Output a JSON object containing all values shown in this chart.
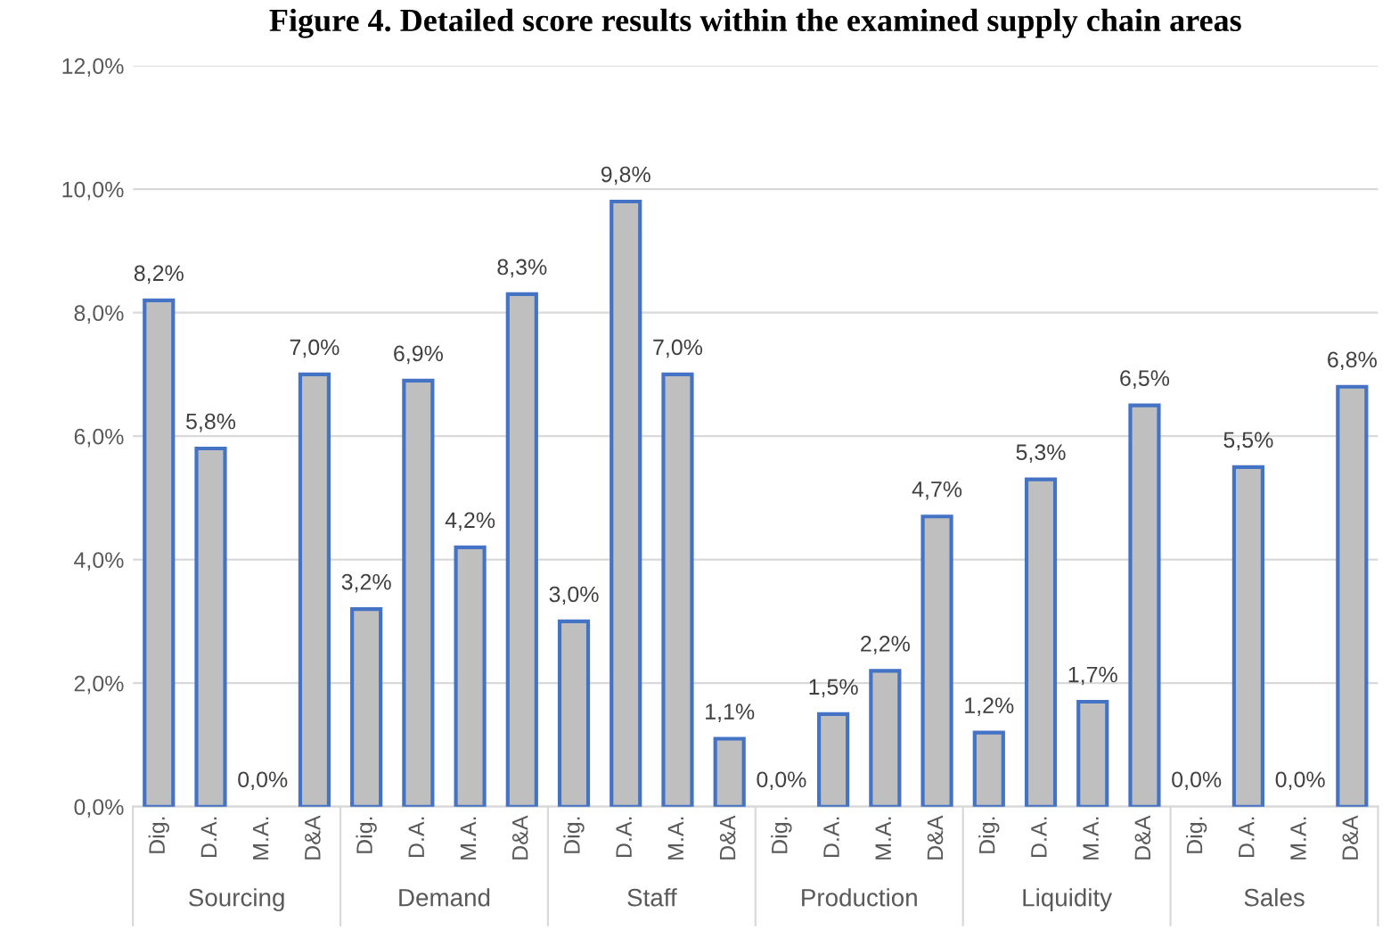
{
  "chart_data": {
    "type": "bar",
    "title": "Figure 4. Detailed score results within the examined supply chain areas",
    "categories": [
      "Dig.",
      "D.A.",
      "M.A.",
      "D&A",
      "Dig.",
      "D.A.",
      "M.A.",
      "D&A",
      "Dig.",
      "D.A.",
      "M.A.",
      "D&A",
      "Dig.",
      "D.A.",
      "M.A.",
      "D&A",
      "Dig.",
      "D.A.",
      "M.A.",
      "D&A",
      "Dig.",
      "D.A.",
      "M.A.",
      "D&A"
    ],
    "values": [
      8.2,
      5.8,
      0.0,
      7.0,
      3.2,
      6.9,
      4.2,
      8.3,
      3.0,
      9.8,
      7.0,
      1.1,
      0.0,
      1.5,
      2.2,
      4.7,
      1.2,
      5.3,
      1.7,
      6.5,
      0.0,
      5.5,
      0.0,
      6.8
    ],
    "value_labels": [
      "8,2%",
      "5,8%",
      "0,0%",
      "7,0%",
      "3,2%",
      "6,9%",
      "4,2%",
      "8,3%",
      "3,0%",
      "9,8%",
      "7,0%",
      "1,1%",
      "0,0%",
      "1,5%",
      "2,2%",
      "4,7%",
      "1,2%",
      "5,3%",
      "1,7%",
      "6,5%",
      "0,0%",
      "5,5%",
      "0,0%",
      "6,8%"
    ],
    "color": "#bfbfbf",
    "annotations": [
      "Sourcing",
      "Demand",
      "Staff",
      "Production",
      "Liquidity",
      "Sales"
    ],
    "ylim": [
      0,
      12
    ],
    "yticks": [
      {
        "value": 0,
        "label": "0,0%"
      },
      {
        "value": 2,
        "label": "2,0%"
      },
      {
        "value": 4,
        "label": "4,0%"
      },
      {
        "value": 6,
        "label": "6,0%"
      },
      {
        "value": 8,
        "label": "8,0%"
      },
      {
        "value": 10,
        "label": "10,0%"
      },
      {
        "value": 12,
        "label": "12,0%"
      }
    ],
    "grid": "y",
    "legend": false
  }
}
